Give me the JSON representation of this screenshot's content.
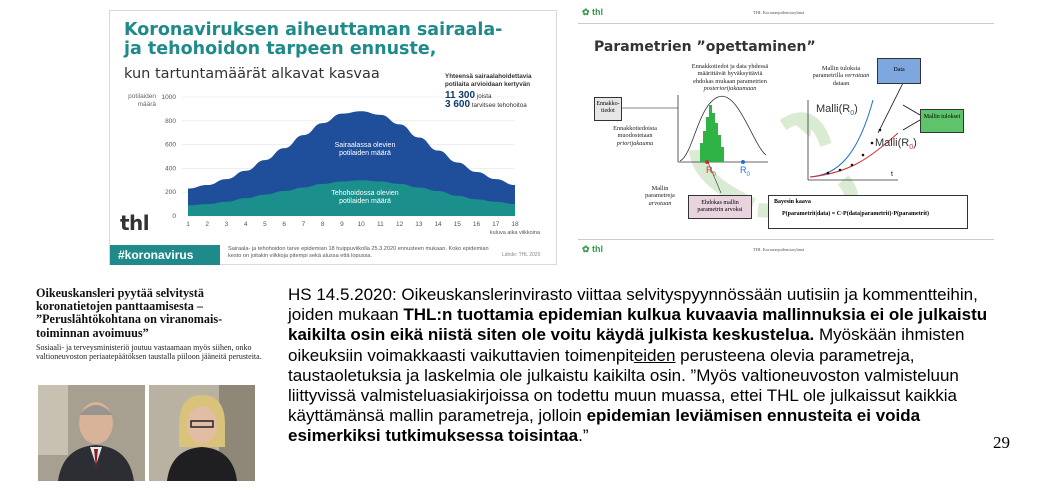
{
  "infographic": {
    "title": "Koronaviruksen aiheuttaman sairaala- ja tehohoidon tarpeen ennuste,",
    "subtitle": "kun tartuntamäärät alkavat kasvaa",
    "y_axis_label": "potilaiden määrä",
    "box_title": "Yhteensä sairaalahoidettavia potilaita arvioidaan kertyvän",
    "box_value_1": "11 300",
    "box_suffix_1": "joista",
    "box_value_2": "3 600",
    "box_suffix_2": "tarvitsee tehohoitoa",
    "series_1_label": "Sairaalassa olevien potilaiden määrä",
    "series_2_label": "Tehohoidossa olevien potilaiden määrä",
    "x_axis_label": "kuluva aika viikkoina",
    "logo": "thl",
    "hashtag": "#koronavirus",
    "footnote": "Sairaala- ja tehohoidon tarve epidemian 18 huippuviikolla 25.3.2020 ennusteen mukaan. Koko epidemian kesto on joitakin viikkoja pitempi sekä alussa että lopussa.",
    "source": "Lähde: THL 2020",
    "colors": {
      "teal": "#1f8a8a",
      "hospital": "#1f4f9a",
      "icu": "#1a8f8c"
    }
  },
  "chart_data": {
    "type": "area",
    "x": [
      1,
      2,
      3,
      4,
      5,
      6,
      7,
      8,
      9,
      10,
      11,
      12,
      13,
      14,
      15,
      16,
      17,
      18
    ],
    "y_ticks": [
      0,
      200,
      400,
      600,
      800,
      1000
    ],
    "x_ticks": [
      "1",
      "2",
      "3",
      "4",
      "5",
      "6",
      "7",
      "8",
      "9",
      "10",
      "11",
      "12",
      "13",
      "14",
      "15",
      "16",
      "17",
      "18"
    ],
    "ylim": [
      0,
      1000
    ],
    "series": [
      {
        "name": "Sairaalassa olevien potilaiden määrä",
        "values": [
          230,
          260,
          310,
          380,
          470,
          570,
          680,
          780,
          860,
          880,
          850,
          770,
          660,
          550,
          450,
          370,
          310,
          260
        ]
      },
      {
        "name": "Tehohoidossa olevien potilaiden määrä",
        "values": [
          90,
          100,
          120,
          150,
          180,
          210,
          240,
          270,
          290,
          300,
          290,
          270,
          240,
          210,
          170,
          140,
          120,
          100
        ]
      }
    ]
  },
  "slide": {
    "logo_top": "thl",
    "header_top": "THL Koronaepidemiaryhmä",
    "title": "Parametrien ”opettaminen”",
    "box_prior_knowledge": "Ennakko-tiedot",
    "text_prior_distribution": "Ennakkotiedoista muodostetaan",
    "text_prior_distribution_italic": "priorijakauma",
    "text_posterior_1": "Ennakkotiedot ja data yhdessä määrittävät hyväksyttäviä ehdokas mukaan parametrien",
    "text_posterior_italic": "posteriorijakaumaan",
    "text_model_results": "Mallin tuloksia parametrilla",
    "text_model_results_italic": "verrataan",
    "text_model_results_end": "dataan",
    "box_data": "Data",
    "box_model_results": "Mallin tulokset",
    "label_model_1": "Malli(R",
    "label_model_2": "Malli(R",
    "label_model_sub": "0",
    "label_model_close": ")",
    "label_r0_red": "R",
    "label_r0_blue": "R",
    "label_r0_sub": "0",
    "axis_t": "t",
    "text_model_params": "Mallin parametreja",
    "text_model_params_italic": "arvotaan",
    "box_candidate": "Ehdokas mallin parametrin arvoksi",
    "bayes_title": "Bayesin kaava",
    "bayes_formula": "P(parametrit|data) = C·P(data|parametrit)·P(parametrit)",
    "logo_bottom": "thl",
    "header_bottom": "THL Koronaepidemiaryhmä"
  },
  "clipping": {
    "headline": "Oikeuskansleri pyytää selvitystä koronatietojen panttaamisesta – ”Peruslähtökohtana on viranomais-toiminnan avoimuus”",
    "lead": "Sosiaali- ja terveysministeriö joutuu vastaamaan myös siihen, onko valtioneuvoston periaatepäätöksen taustalla piiloon jääneitä perusteita."
  },
  "quote": {
    "p1": "HS 14.5.2020: Oikeuskanslerinvirasto viittaa selvityspyynnössään uutisiin ja kommentteihin, joiden mukaan ",
    "b1": "THL:n tuottamia epidemian kulkua kuvaavia mallinnuksia ei ole julkaistu kaikilta osin eikä niistä siten ole voitu käydä julkista keskustelua.",
    "p2": " Myöskään ihmisten oikeuksiin voimakkaasti vaikuttavien toimenpit",
    "u1": "eiden",
    "p3": " perusteena olevia parametreja, taustaoletuksia ja laskelmia ole julkaistu kaikilta osin. ”Myös valtioneuvoston valmisteluun liittyvissä valmisteluasiakirjoissa on todettu muun muassa, ettei THL ole julkaissut kaikkia käyttämänsä mallin parametreja, jolloin ",
    "b2": "epidemian leviämisen ennusteita ei voida esimerkiksi tutkimuksessa toisintaa",
    "p4": ".”"
  },
  "page_number": "29"
}
